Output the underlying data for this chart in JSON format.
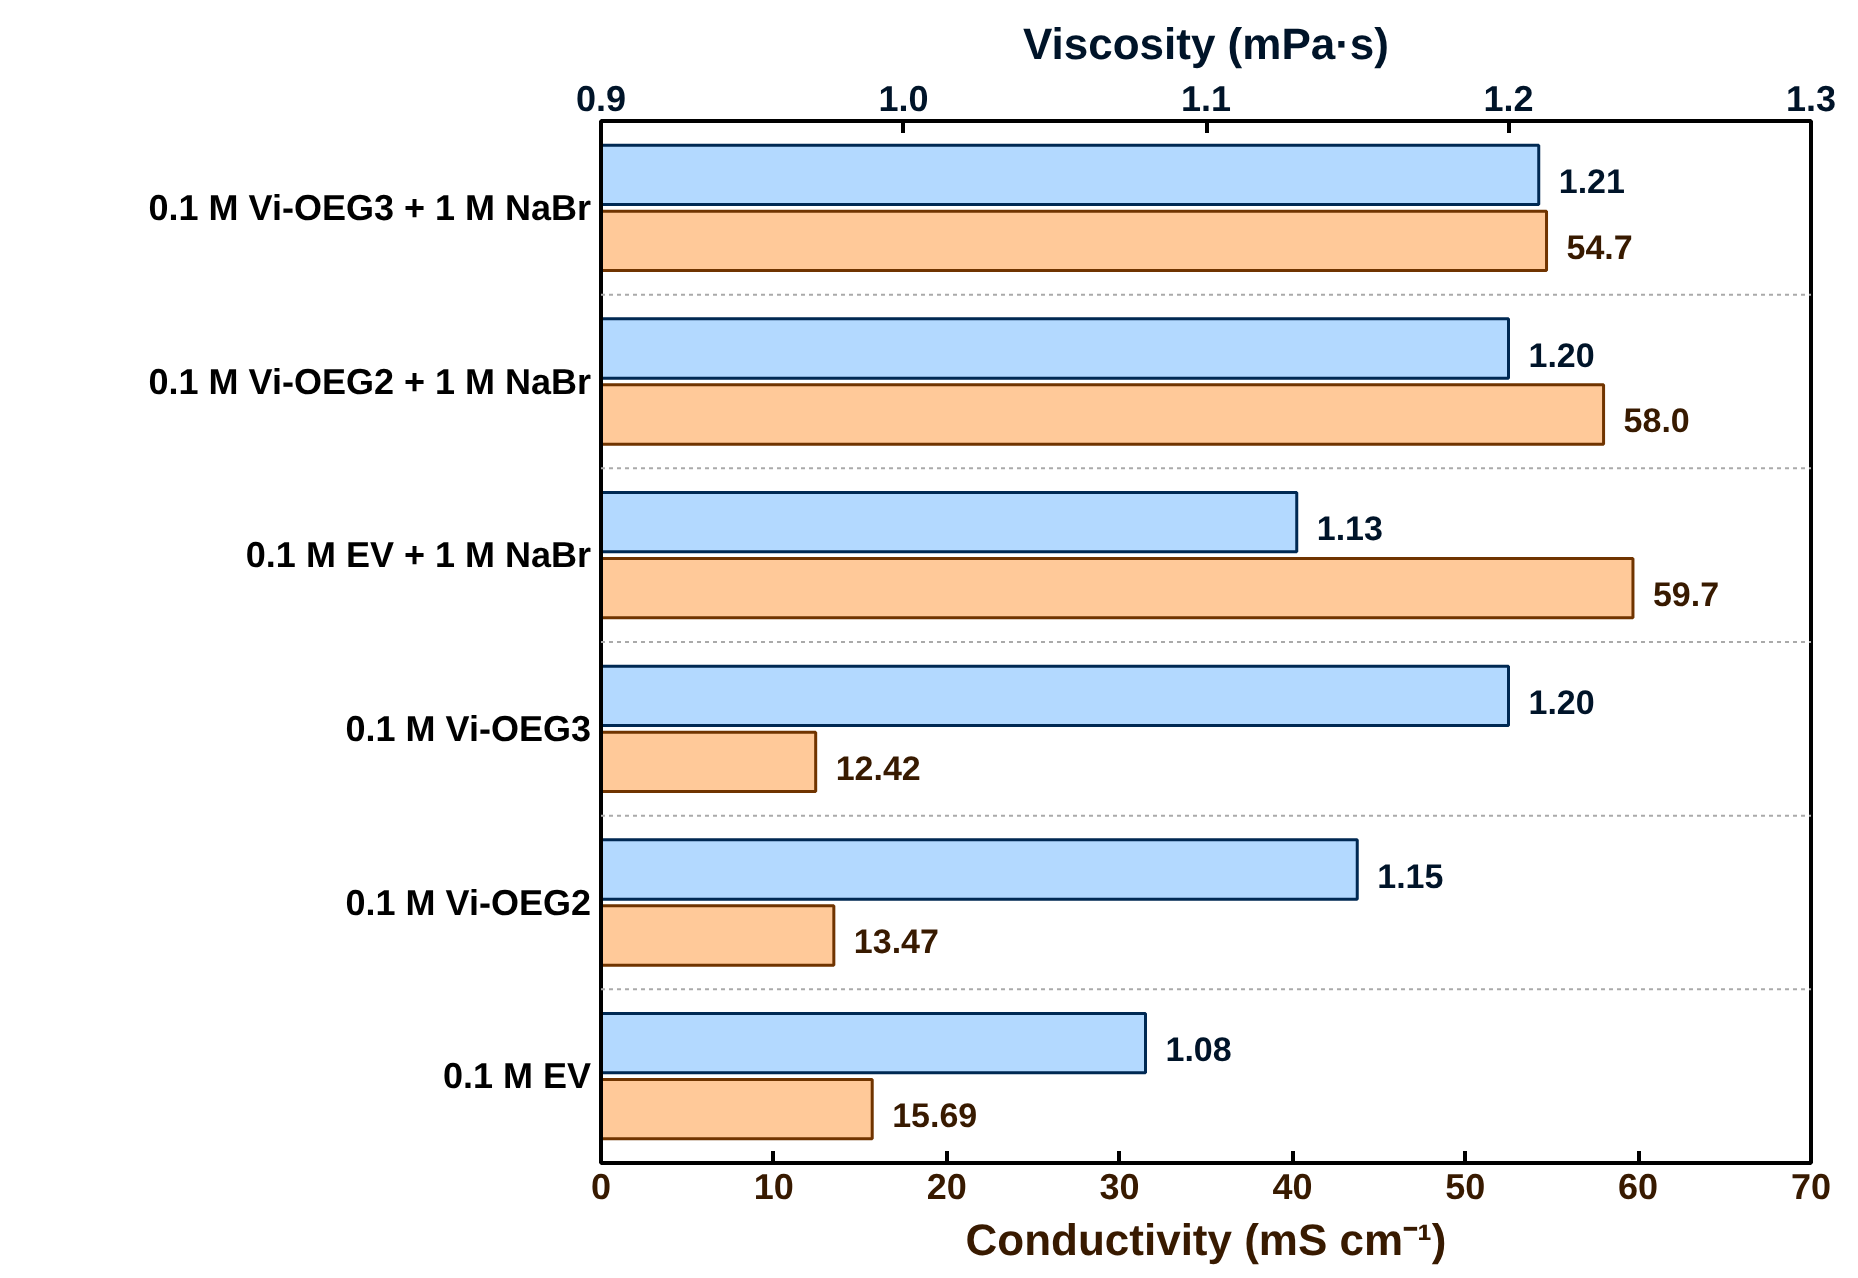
{
  "chart_data": {
    "type": "bar",
    "orientation": "horizontal",
    "categories": [
      "0.1 M Vi-OEG3 + 1 M NaBr",
      "0.1 M Vi-OEG2 + 1 M NaBr",
      "0.1 M EV + 1 M NaBr",
      "0.1 M Vi-OEG3",
      "0.1 M Vi-OEG2",
      "0.1 M EV"
    ],
    "xlabel": "Conductivity (mS cm⁻¹)",
    "x2label": "Viscosity (mPa·s)",
    "xlim": [
      0,
      70
    ],
    "xticks": [
      0,
      10,
      20,
      30,
      40,
      50,
      60,
      70
    ],
    "x2lim": [
      0.9,
      1.3
    ],
    "x2ticks": [
      0.9,
      {
        "value": 1.0,
        "label": "1.0"
      },
      1.1,
      1.2,
      1.3
    ],
    "grid": "y",
    "series": [
      {
        "color": "#b3d9ff",
        "axis": "x2",
        "values": [
          1.21,
          1.2,
          1.13,
          1.2,
          1.15,
          1.08
        ],
        "value_labels": [
          "1.21",
          "1.20",
          "1.13",
          "1.20",
          "1.15",
          "1.08"
        ]
      },
      {
        "color": "#ffc999",
        "values": [
          54.7,
          58.0,
          59.7,
          12.42,
          13.47,
          15.69
        ],
        "value_labels": [
          "54.7",
          "58.0",
          "59.7",
          "12.42",
          "13.47",
          "15.69"
        ]
      }
    ]
  }
}
